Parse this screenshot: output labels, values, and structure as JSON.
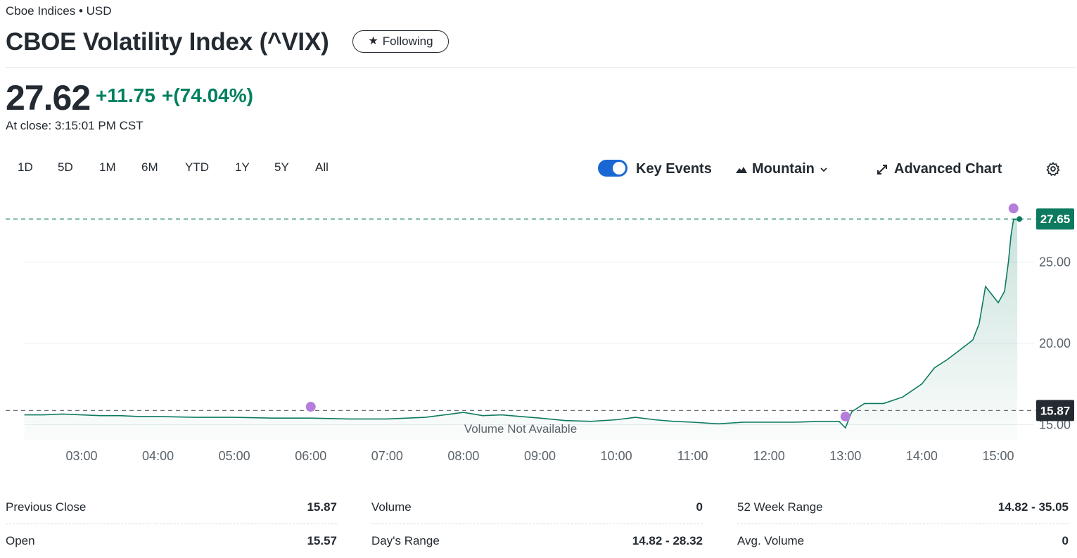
{
  "header": {
    "exchange": "Cboe Indices • USD",
    "title": "CBOE Volatility Index (^VIX)",
    "follow_label": "Following",
    "price": "27.62",
    "change": "+11.75",
    "change_pct": "+(74.04%)",
    "close_time": "At close: 3:15:01 PM CST"
  },
  "toolbar": {
    "ranges": [
      "1D",
      "5D",
      "1M",
      "6M",
      "YTD",
      "1Y",
      "5Y",
      "All"
    ],
    "key_events_label": "Key Events",
    "key_events_on": true,
    "chart_type_label": "Mountain",
    "advanced_label": "Advanced Chart"
  },
  "colors": {
    "positive": "#008060",
    "line": "#0d7a5f",
    "event": "#b57edc",
    "toggle": "#1967d2"
  },
  "chart_data": {
    "type": "area",
    "x_ticks": [
      "03:00",
      "04:00",
      "05:00",
      "06:00",
      "07:00",
      "08:00",
      "09:00",
      "10:00",
      "11:00",
      "12:00",
      "13:00",
      "14:00",
      "15:00"
    ],
    "y_ticks": [
      "25.00",
      "20.00",
      "15.00"
    ],
    "ylim": [
      14.5,
      29
    ],
    "last_price_label": "27.65",
    "prev_close_label": "15.87",
    "last_price": 27.65,
    "prev_close": 15.87,
    "volume_note": "Volume Not Available",
    "series": [
      {
        "x": [
          "02:15",
          "02:30",
          "02:45",
          "03:00",
          "03:15",
          "03:30",
          "03:45",
          "04:00",
          "04:30",
          "05:00",
          "05:30",
          "06:00",
          "06:30",
          "07:00",
          "07:30",
          "07:50",
          "08:00",
          "08:15",
          "08:30",
          "08:45",
          "09:00",
          "09:20",
          "09:40",
          "10:00",
          "10:15",
          "10:30",
          "10:45",
          "11:00",
          "11:20",
          "11:40",
          "12:00",
          "12:20",
          "12:40",
          "12:55",
          "13:00",
          "13:05",
          "13:15",
          "13:30",
          "13:45",
          "14:00",
          "14:10",
          "14:20",
          "14:30",
          "14:40",
          "14:45",
          "14:50",
          "14:55",
          "15:00",
          "15:05",
          "15:08",
          "15:10",
          "15:12",
          "15:15"
        ],
        "y": [
          15.6,
          15.6,
          15.65,
          15.6,
          15.55,
          15.55,
          15.5,
          15.5,
          15.45,
          15.45,
          15.4,
          15.4,
          15.35,
          15.35,
          15.45,
          15.65,
          15.75,
          15.55,
          15.6,
          15.5,
          15.4,
          15.25,
          15.2,
          15.3,
          15.45,
          15.3,
          15.2,
          15.15,
          15.05,
          15.15,
          15.15,
          15.15,
          15.2,
          15.2,
          14.8,
          15.8,
          16.3,
          16.3,
          16.7,
          17.5,
          18.5,
          19.0,
          19.6,
          20.2,
          21.2,
          23.5,
          23.0,
          22.5,
          23.2,
          25.0,
          26.6,
          27.6,
          27.65
        ]
      }
    ],
    "key_events_x": [
      "06:00",
      "13:00",
      "15:12"
    ],
    "key_events_y": [
      16.1,
      15.5,
      28.3
    ]
  },
  "stats": [
    {
      "label": "Previous Close",
      "value": "15.87"
    },
    {
      "label": "Open",
      "value": "15.57"
    },
    {
      "label": "Volume",
      "value": "0"
    },
    {
      "label": "Day's Range",
      "value": "14.82 - 28.32"
    },
    {
      "label": "52 Week Range",
      "value": "14.82 - 35.05"
    },
    {
      "label": "Avg. Volume",
      "value": "0"
    }
  ]
}
